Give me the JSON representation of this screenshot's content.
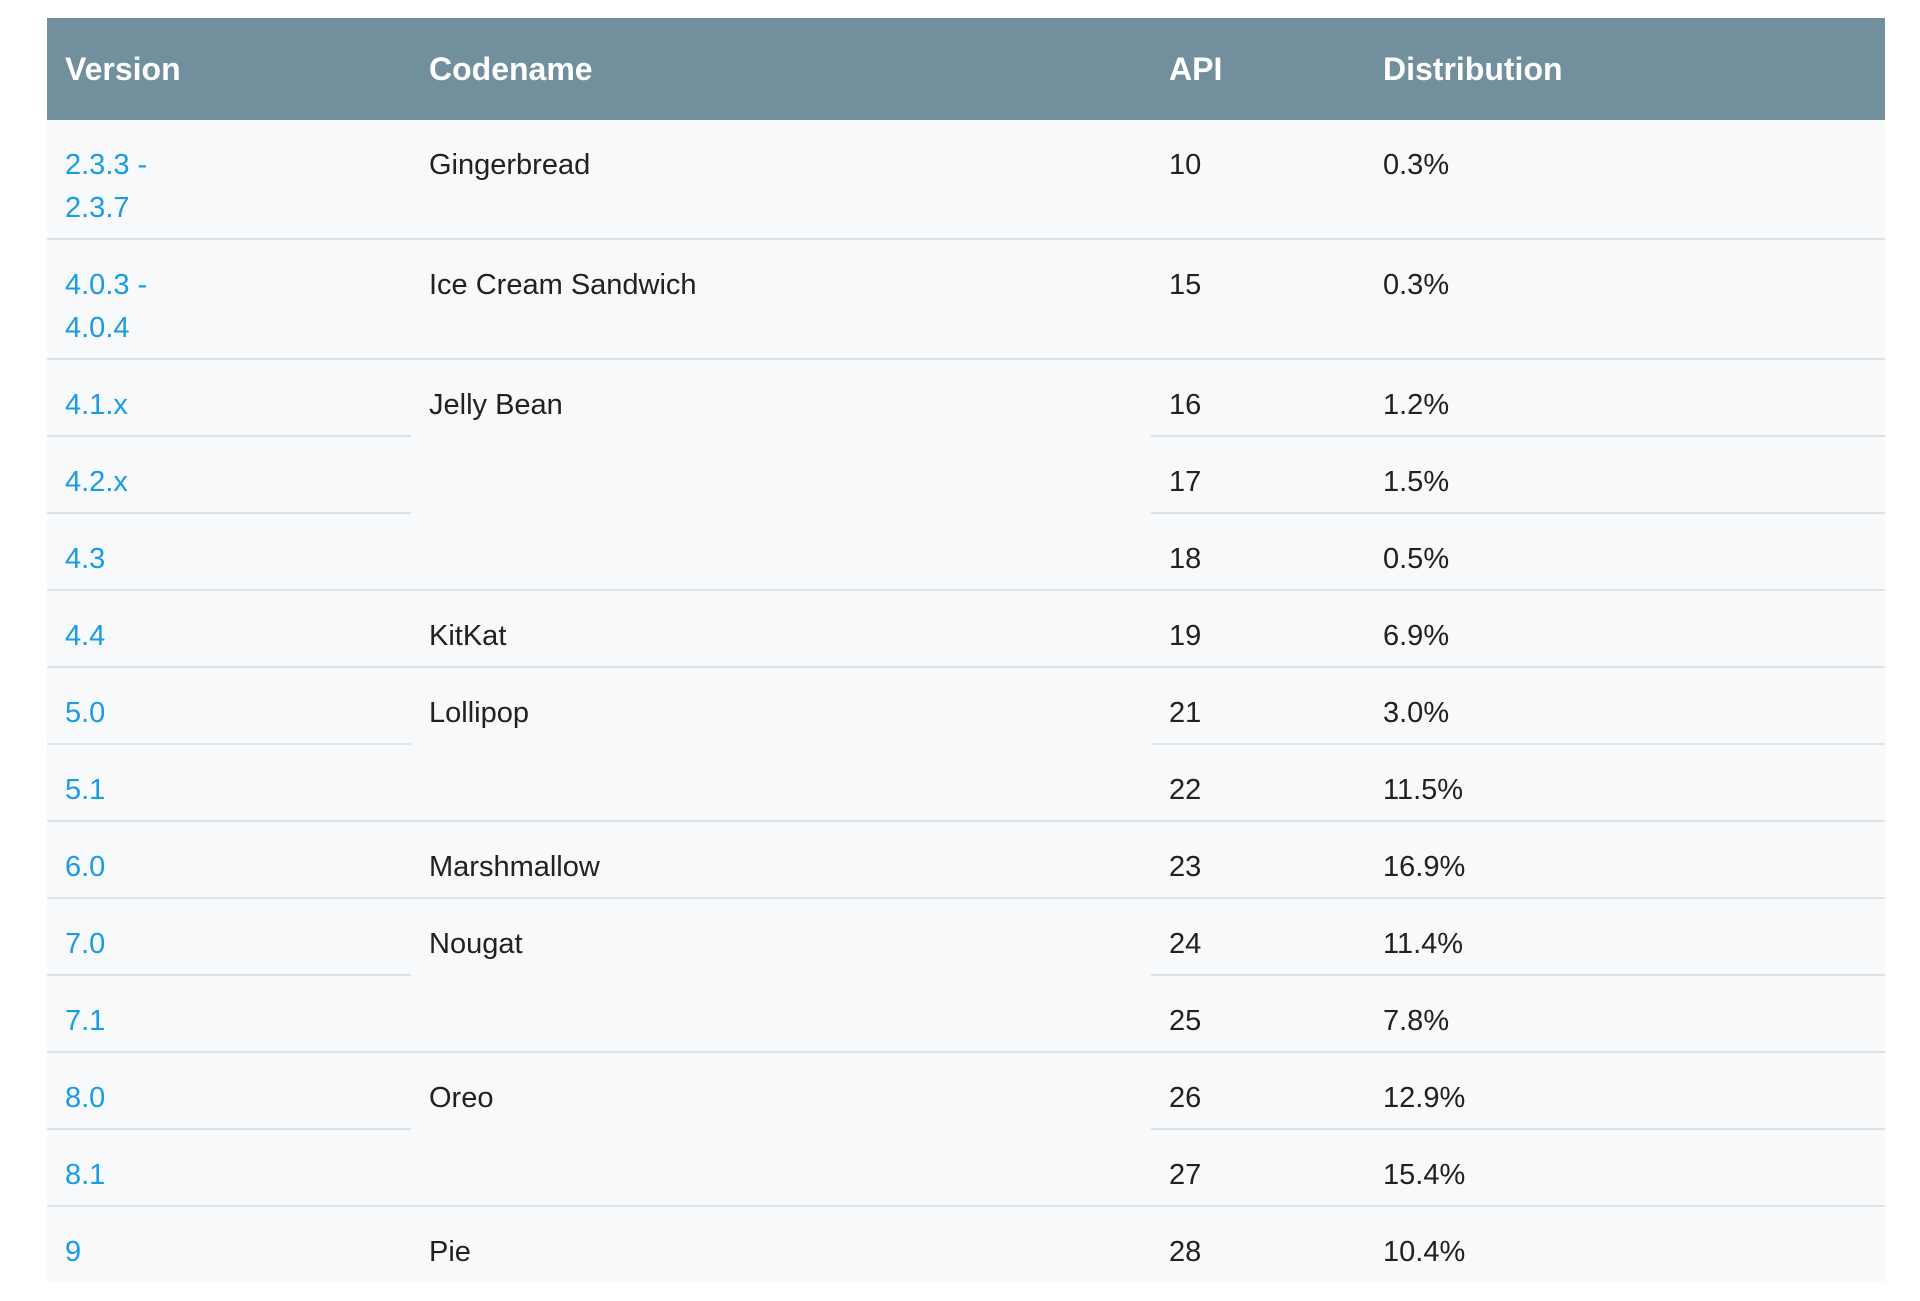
{
  "table": {
    "headers": {
      "version": "Version",
      "codename": "Codename",
      "api": "API",
      "distribution": "Distribution"
    },
    "rows": [
      {
        "version_line1": "2.3.3 -",
        "version_line2": "2.3.7",
        "codename": "Gingerbread",
        "api": "10",
        "distribution": "0.3%"
      },
      {
        "version_line1": "4.0.3 -",
        "version_line2": "4.0.4",
        "codename": "Ice Cream Sandwich",
        "api": "15",
        "distribution": "0.3%"
      },
      {
        "version_line1": "4.1.x",
        "codename": "Jelly Bean",
        "api": "16",
        "distribution": "1.2%"
      },
      {
        "version_line1": "4.2.x",
        "api": "17",
        "distribution": "1.5%"
      },
      {
        "version_line1": "4.3",
        "api": "18",
        "distribution": "0.5%"
      },
      {
        "version_line1": "4.4",
        "codename": "KitKat",
        "api": "19",
        "distribution": "6.9%"
      },
      {
        "version_line1": "5.0",
        "codename": "Lollipop",
        "api": "21",
        "distribution": "3.0%"
      },
      {
        "version_line1": "5.1",
        "api": "22",
        "distribution": "11.5%"
      },
      {
        "version_line1": "6.0",
        "codename": "Marshmallow",
        "api": "23",
        "distribution": "16.9%"
      },
      {
        "version_line1": "7.0",
        "codename": "Nougat",
        "api": "24",
        "distribution": "11.4%"
      },
      {
        "version_line1": "7.1",
        "api": "25",
        "distribution": "7.8%"
      },
      {
        "version_line1": "8.0",
        "codename": "Oreo",
        "api": "26",
        "distribution": "12.9%"
      },
      {
        "version_line1": "8.1",
        "api": "27",
        "distribution": "15.4%"
      },
      {
        "version_line1": "9",
        "codename": "Pie",
        "api": "28",
        "distribution": "10.4%"
      }
    ]
  },
  "colors": {
    "header_bg": "#718f9d",
    "header_text": "#ffffff",
    "row_bg": "#f7f9fa",
    "row_border": "#dde3e6",
    "link": "#1a9be3",
    "text": "#212121"
  }
}
